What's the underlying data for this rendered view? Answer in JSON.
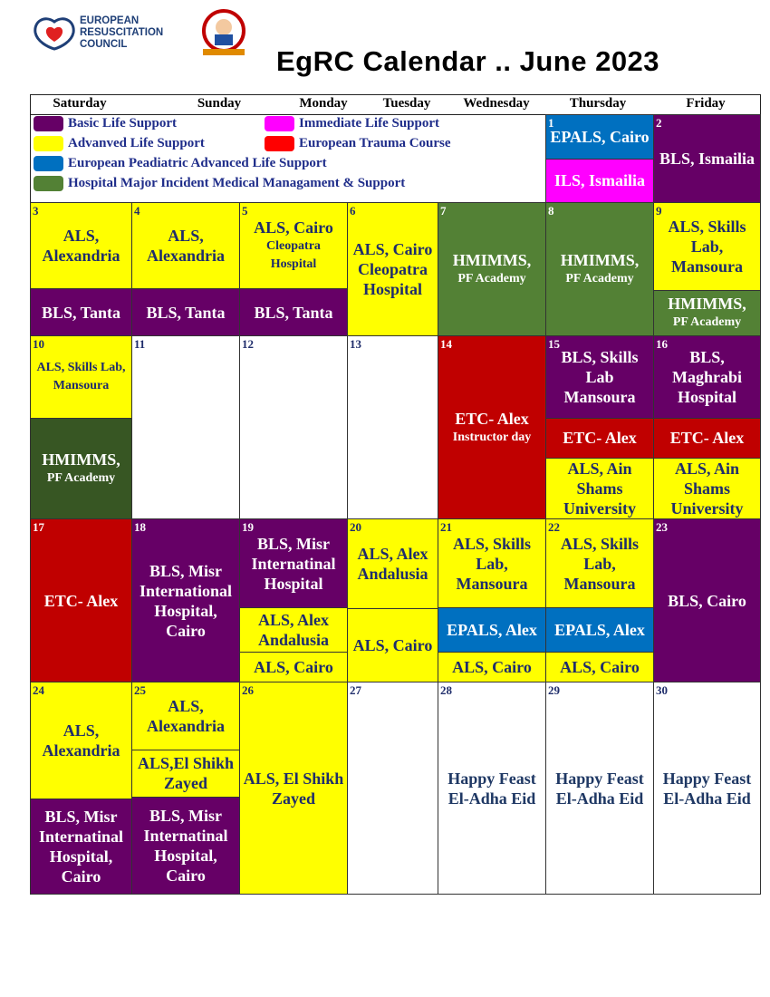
{
  "header": {
    "logo_text": [
      "EUROPEAN",
      "RESUSCITATION",
      "COUNCIL"
    ],
    "title": "EgRC Calendar .. June 2023"
  },
  "days": [
    "Saturday",
    "Sunday",
    "Monday",
    "Tuesday",
    "Wednesday",
    "Thursday",
    "Friday"
  ],
  "legend": [
    {
      "label": "Basic Life Support",
      "color": "#660066"
    },
    {
      "label": "Immediate Life Support",
      "color": "#ff00ff"
    },
    {
      "label": "Advanved Life Support",
      "color": "#ffff00"
    },
    {
      "label": "European Trauma Course",
      "color": "#ff0000"
    },
    {
      "label": "European Peadiatric Advanced Life Support",
      "color": "#0070c0"
    },
    {
      "label": "Hospital Major Incident Medical  Managament & Support",
      "color": "#538135"
    }
  ],
  "weeks": [
    {
      "cells": [
        {
          "day": 1,
          "events": [
            {
              "text": "EPALS, Cairo",
              "color": "#0070c0"
            },
            {
              "text": "ILS, Ismailia",
              "color": "#ff00ff"
            }
          ]
        },
        {
          "day": 2,
          "events": [
            {
              "text": "BLS, Ismailia",
              "color": "#660066"
            }
          ]
        }
      ]
    },
    {
      "cells": [
        {
          "day": 3,
          "events": [
            {
              "text": "ALS, Alexandria",
              "color": "#ffff00"
            },
            {
              "text": "BLS, Tanta",
              "color": "#660066"
            }
          ]
        },
        {
          "day": 4,
          "events": [
            {
              "text": "ALS, Alexandria",
              "color": "#ffff00"
            },
            {
              "text": "BLS, Tanta",
              "color": "#660066"
            }
          ]
        },
        {
          "day": 5,
          "events": [
            {
              "text": "ALS, Cairo",
              "sub": "Cleopatra Hospital",
              "color": "#ffff00"
            },
            {
              "text": "BLS, Tanta",
              "color": "#660066"
            }
          ]
        },
        {
          "day": 6,
          "events": [
            {
              "text": "ALS, Cairo Cleopatra Hospital",
              "color": "#ffff00"
            }
          ]
        },
        {
          "day": 7,
          "events": [
            {
              "text": "HMIMMS,",
              "sub": "PF Academy",
              "color": "#538135"
            }
          ]
        },
        {
          "day": 8,
          "events": [
            {
              "text": "HMIMMS,",
              "sub": "PF Academy",
              "color": "#538135"
            }
          ]
        },
        {
          "day": 9,
          "events": [
            {
              "text": "ALS, Skills Lab, Mansoura",
              "color": "#ffff00"
            },
            {
              "text": "HMIMMS,",
              "sub": "PF Academy",
              "color": "#538135"
            }
          ]
        }
      ]
    },
    {
      "cells": [
        {
          "day": 10,
          "events": [
            {
              "sub": "ALS, Skills Lab, Mansoura",
              "color": "#ffff00"
            },
            {
              "text": "HMIMMS,",
              "sub": "PF Academy",
              "color": "#375623"
            }
          ]
        },
        {
          "day": 11,
          "events": []
        },
        {
          "day": 12,
          "events": []
        },
        {
          "day": 13,
          "events": []
        },
        {
          "day": 14,
          "events": [
            {
              "text": "ETC- Alex",
              "sub": "Instructor day",
              "color": "#c00000"
            }
          ]
        },
        {
          "day": 15,
          "events": [
            {
              "text": "BLS, Skills Lab Mansoura",
              "color": "#660066"
            },
            {
              "text": "ETC- Alex",
              "color": "#c00000"
            },
            {
              "text": "ALS, Ain Shams University",
              "color": "#ffff00"
            }
          ]
        },
        {
          "day": 16,
          "events": [
            {
              "text": "BLS, Maghrabi Hospital",
              "color": "#660066"
            },
            {
              "text": "ETC- Alex",
              "color": "#c00000"
            },
            {
              "text": "ALS, Ain Shams University",
              "color": "#ffff00"
            }
          ]
        }
      ]
    },
    {
      "cells": [
        {
          "day": 17,
          "events": [
            {
              "text": "ETC- Alex",
              "color": "#c00000"
            }
          ]
        },
        {
          "day": 18,
          "events": [
            {
              "text": "BLS, Misr International Hospital, Cairo",
              "color": "#660066"
            }
          ]
        },
        {
          "day": 19,
          "events": [
            {
              "text": "BLS, Misr Internatinal Hospital",
              "color": "#660066"
            },
            {
              "text": "ALS, Alex Andalusia",
              "color": "#ffff00"
            },
            {
              "text": "ALS, Cairo",
              "color": "#ffff00"
            }
          ]
        },
        {
          "day": 20,
          "events": [
            {
              "text": "ALS, Alex Andalusia",
              "color": "#ffff00"
            },
            {
              "text": "ALS, Cairo",
              "color": "#ffff00"
            }
          ]
        },
        {
          "day": 21,
          "events": [
            {
              "text": "ALS, Skills Lab, Mansoura",
              "color": "#ffff00"
            },
            {
              "text": "EPALS, Alex",
              "color": "#0070c0"
            },
            {
              "text": "ALS, Cairo",
              "color": "#ffff00"
            }
          ]
        },
        {
          "day": 22,
          "events": [
            {
              "text": "ALS, Skills Lab, Mansoura",
              "color": "#ffff00"
            },
            {
              "text": "EPALS, Alex",
              "color": "#0070c0"
            },
            {
              "text": "ALS, Cairo",
              "color": "#ffff00"
            }
          ]
        },
        {
          "day": 23,
          "events": [
            {
              "text": "BLS, Cairo",
              "color": "#660066"
            }
          ]
        }
      ]
    },
    {
      "cells": [
        {
          "day": 24,
          "events": [
            {
              "text": "ALS, Alexandria",
              "color": "#ffff00"
            },
            {
              "text": "BLS, Misr Internatinal Hospital, Cairo",
              "color": "#660066"
            }
          ]
        },
        {
          "day": 25,
          "events": [
            {
              "text": "ALS, Alexandria",
              "color": "#ffff00"
            },
            {
              "text": "ALS,El Shikh Zayed",
              "color": "#ffff00"
            },
            {
              "text": "BLS, Misr Internatinal Hospital, Cairo",
              "color": "#660066"
            }
          ]
        },
        {
          "day": 26,
          "events": [
            {
              "text": "ALS, El Shikh Zayed",
              "color": "#ffff00"
            }
          ]
        },
        {
          "day": 27,
          "events": []
        },
        {
          "day": 28,
          "events": [
            {
              "text": "Happy Feast El-Adha Eid",
              "color": "#ffffff"
            }
          ]
        },
        {
          "day": 29,
          "events": [
            {
              "text": "Happy Feast El-Adha Eid",
              "color": "#ffffff"
            }
          ]
        },
        {
          "day": 30,
          "events": [
            {
              "text": "Happy Feast El-Adha Eid",
              "color": "#ffffff"
            }
          ]
        }
      ]
    }
  ]
}
